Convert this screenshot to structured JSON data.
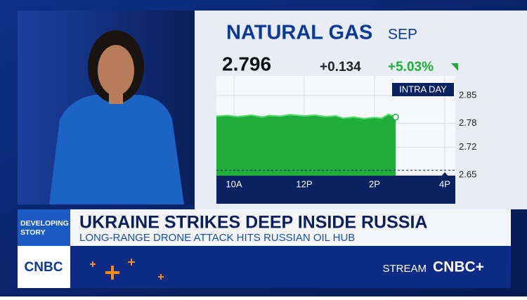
{
  "ticker": {
    "title": "NATURAL GAS",
    "contract": "SEP",
    "price": "2.796",
    "change": "+0.134",
    "percent": "+5.03%"
  },
  "chart": {
    "type": "area",
    "label": "INTRA DAY",
    "color": "#1fae3a",
    "x": [
      9.5,
      9.8,
      10.1,
      10.5,
      10.8,
      11.0,
      11.3,
      11.6,
      12.0,
      12.3,
      12.6,
      12.9,
      13.1,
      13.4,
      13.7,
      14.0,
      14.2,
      14.4,
      14.6
    ],
    "values": [
      2.798,
      2.8,
      2.797,
      2.801,
      2.796,
      2.8,
      2.798,
      2.802,
      2.799,
      2.801,
      2.797,
      2.799,
      2.793,
      2.796,
      2.792,
      2.795,
      2.793,
      2.803,
      2.796
    ],
    "previous_close": 2.662,
    "xlim": [
      9.5,
      16.3
    ],
    "ylim": [
      2.65,
      2.9
    ],
    "xticks": [
      {
        "value": 10,
        "label": "10A"
      },
      {
        "value": 12,
        "label": "12P"
      },
      {
        "value": 14,
        "label": "2P"
      },
      {
        "value": 16,
        "label": "4P"
      }
    ],
    "yticks": [
      2.85,
      2.78,
      2.72,
      2.65
    ]
  },
  "banner": {
    "tag": "DEVELOPING STORY",
    "headline": "UKRAINE STRIKES DEEP INSIDE RUSSIA",
    "subheadline": "LONG-RANGE DRONE ATTACK HITS RUSSIAN OIL HUB",
    "logo": "CNBC",
    "promo": "STREAM",
    "promo_logo": "CNBC+"
  }
}
